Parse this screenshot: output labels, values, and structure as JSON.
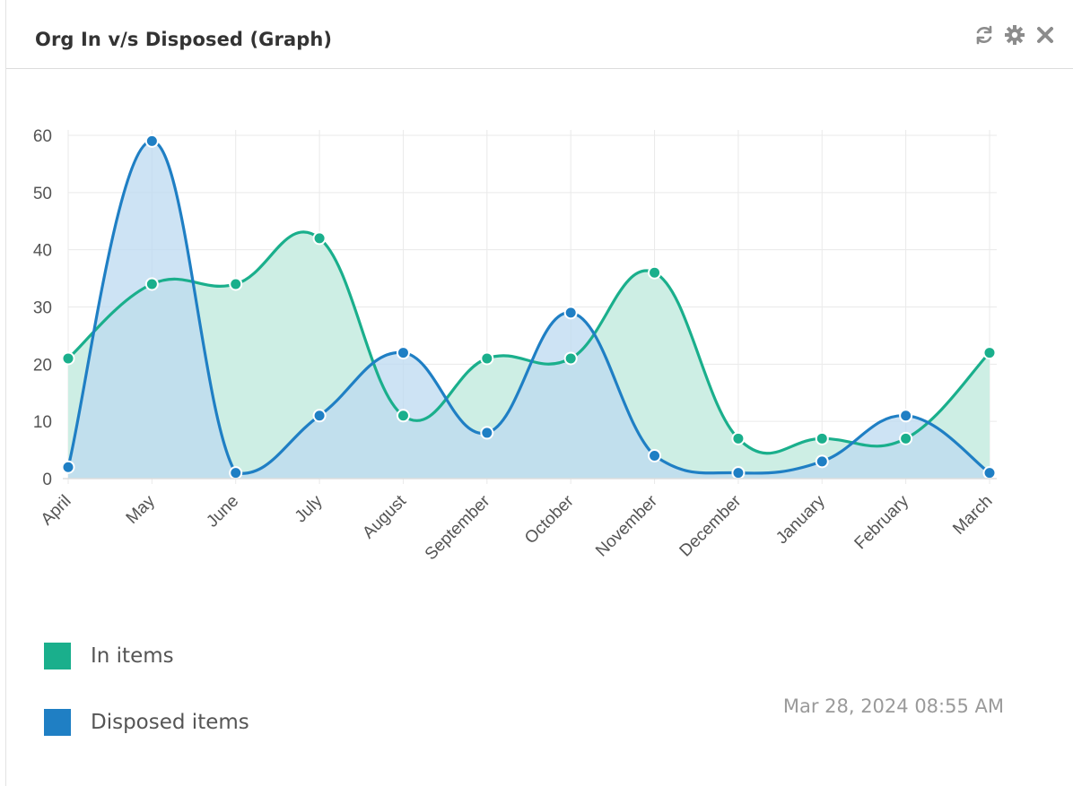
{
  "widget": {
    "title": "Org In v/s Disposed (Graph)",
    "icons": [
      "refresh-icon",
      "gear-icon",
      "close-icon"
    ],
    "timestamp": "Mar 28, 2024 08:55 AM"
  },
  "colors": {
    "in_items": "#1aaf8c",
    "disposed_items": "#1f7fc4",
    "in_fill": "#cdeee4",
    "disposed_fill": "#bcd9f0",
    "grid": "#eaeaea",
    "tick_text": "#555555"
  },
  "chart_data": {
    "type": "area",
    "title": "Org In v/s Disposed (Graph)",
    "xlabel": "",
    "ylabel": "",
    "ylim": [
      0,
      60
    ],
    "yticks": [
      0,
      10,
      20,
      30,
      40,
      50,
      60
    ],
    "grid": true,
    "legend": "bottom-left",
    "categories": [
      "April",
      "May",
      "June",
      "July",
      "August",
      "September",
      "October",
      "November",
      "December",
      "January",
      "February",
      "March"
    ],
    "series": [
      {
        "name": "In items",
        "values": [
          21,
          34,
          34,
          42,
          11,
          21,
          21,
          36,
          7,
          7,
          7,
          22
        ]
      },
      {
        "name": "Disposed items",
        "values": [
          2,
          59,
          1,
          11,
          22,
          8,
          29,
          4,
          1,
          3,
          11,
          1
        ]
      }
    ]
  }
}
